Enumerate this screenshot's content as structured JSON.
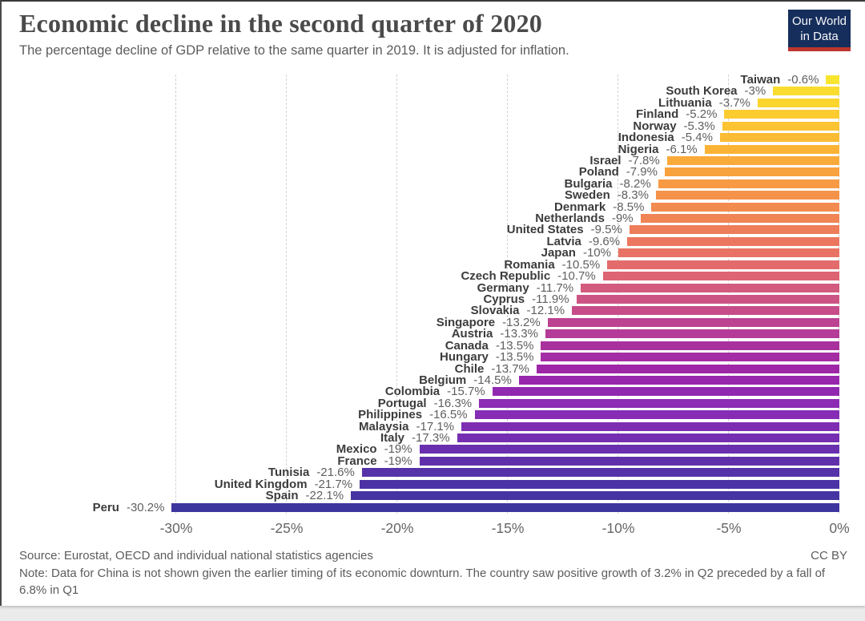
{
  "logo": {
    "line1": "Our World",
    "line2": "in Data",
    "bg_color": "#162e5c",
    "accent_color": "#be362e"
  },
  "chart_data": {
    "type": "bar",
    "orientation": "horizontal",
    "title": "Economic decline in the second quarter of 2020",
    "subtitle": "The percentage decline of GDP relative to the same quarter in 2019. It is adjusted for inflation.",
    "unit": "%",
    "xlim": [
      -30,
      0
    ],
    "grid": true,
    "gridline_color": "#d2d2d2",
    "ticks": [
      {
        "label": "-30%",
        "value": 30
      },
      {
        "label": "-25%",
        "value": 25
      },
      {
        "label": "-20%",
        "value": 20
      },
      {
        "label": "-15%",
        "value": 15
      },
      {
        "label": "-10%",
        "value": 10
      },
      {
        "label": "-5%",
        "value": 5
      },
      {
        "label": "0%",
        "value": 0
      }
    ],
    "countries": [
      {
        "name": "Taiwan",
        "value": -0.6,
        "label": "-0.6%",
        "color": "#f8e52f"
      },
      {
        "name": "South Korea",
        "value": -3,
        "label": "-3%",
        "color": "#fadc2e"
      },
      {
        "name": "Lithuania",
        "value": -3.7,
        "label": "-3.7%",
        "color": "#fbd42e"
      },
      {
        "name": "Finland",
        "value": -5.2,
        "label": "-5.2%",
        "color": "#fccb30"
      },
      {
        "name": "Norway",
        "value": -5.3,
        "label": "-5.3%",
        "color": "#fcc332"
      },
      {
        "name": "Indonesia",
        "value": -5.4,
        "label": "-5.4%",
        "color": "#fcbb34"
      },
      {
        "name": "Nigeria",
        "value": -6.1,
        "label": "-6.1%",
        "color": "#fbb336"
      },
      {
        "name": "Israel",
        "value": -7.8,
        "label": "-7.8%",
        "color": "#faaa3a"
      },
      {
        "name": "Poland",
        "value": -7.9,
        "label": "-7.9%",
        "color": "#f8a23e"
      },
      {
        "name": "Bulgaria",
        "value": -8.2,
        "label": "-8.2%",
        "color": "#f79a43"
      },
      {
        "name": "Sweden",
        "value": -8.3,
        "label": "-8.3%",
        "color": "#f59249"
      },
      {
        "name": "Denmark",
        "value": -8.5,
        "label": "-8.5%",
        "color": "#f38a4f"
      },
      {
        "name": "Netherlands",
        "value": -9,
        "label": "-9%",
        "color": "#f08455"
      },
      {
        "name": "United States",
        "value": -9.5,
        "label": "-9.5%",
        "color": "#ee7d5a"
      },
      {
        "name": "Latvia",
        "value": -9.6,
        "label": "-9.6%",
        "color": "#ec775f"
      },
      {
        "name": "Japan",
        "value": -10,
        "label": "-10%",
        "color": "#e87364"
      },
      {
        "name": "Romania",
        "value": -10.5,
        "label": "-10.5%",
        "color": "#e36b6b"
      },
      {
        "name": "Czech Republic",
        "value": -10.7,
        "label": "-10.7%",
        "color": "#dd6472"
      },
      {
        "name": "Germany",
        "value": -11.7,
        "label": "-11.7%",
        "color": "#d25b7e"
      },
      {
        "name": "Cyprus",
        "value": -11.9,
        "label": "-11.9%",
        "color": "#cc5484"
      },
      {
        "name": "Slovakia",
        "value": -12.1,
        "label": "-12.1%",
        "color": "#c64d8a"
      },
      {
        "name": "Singapore",
        "value": -13.2,
        "label": "-13.2%",
        "color": "#bc4292"
      },
      {
        "name": "Austria",
        "value": -13.3,
        "label": "-13.3%",
        "color": "#b43b98"
      },
      {
        "name": "Canada",
        "value": -13.5,
        "label": "-13.5%",
        "color": "#a9319e"
      },
      {
        "name": "Hungary",
        "value": -13.5,
        "label": "-13.5%",
        "color": "#a52da3"
      },
      {
        "name": "Chile",
        "value": -13.7,
        "label": "-13.7%",
        "color": "#9e27a8"
      },
      {
        "name": "Belgium",
        "value": -14.5,
        "label": "-14.5%",
        "color": "#9827ad"
      },
      {
        "name": "Colombia",
        "value": -15.7,
        "label": "-15.7%",
        "color": "#9129b0"
      },
      {
        "name": "Portugal",
        "value": -16.3,
        "label": "-16.3%",
        "color": "#8c2bb3"
      },
      {
        "name": "Philippines",
        "value": -16.5,
        "label": "-16.5%",
        "color": "#872cb5"
      },
      {
        "name": "Malaysia",
        "value": -17.1,
        "label": "-17.1%",
        "color": "#7e2db3"
      },
      {
        "name": "Italy",
        "value": -17.3,
        "label": "-17.3%",
        "color": "#752eb1"
      },
      {
        "name": "Mexico",
        "value": -19,
        "label": "-19%",
        "color": "#6a2fae"
      },
      {
        "name": "France",
        "value": -19,
        "label": "-19%",
        "color": "#6030ab"
      },
      {
        "name": "Tunisia",
        "value": -21.6,
        "label": "-21.6%",
        "color": "#5532a8"
      },
      {
        "name": "United Kingdom",
        "value": -21.7,
        "label": "-21.7%",
        "color": "#4c33a5"
      },
      {
        "name": "Spain",
        "value": -22.1,
        "label": "-22.1%",
        "color": "#4634a2"
      },
      {
        "name": "Peru",
        "value": -30.2,
        "label": "-30.2%",
        "color": "#3d369e"
      }
    ]
  },
  "footer": {
    "source": "Source: Eurostat, OECD and individual national statistics agencies",
    "license": "CC BY",
    "note": "Note: Data for China is not shown given the earlier timing of its economic downturn. The country saw positive growth of 3.2% in Q2 preceded by a fall of 6.8% in Q1"
  }
}
